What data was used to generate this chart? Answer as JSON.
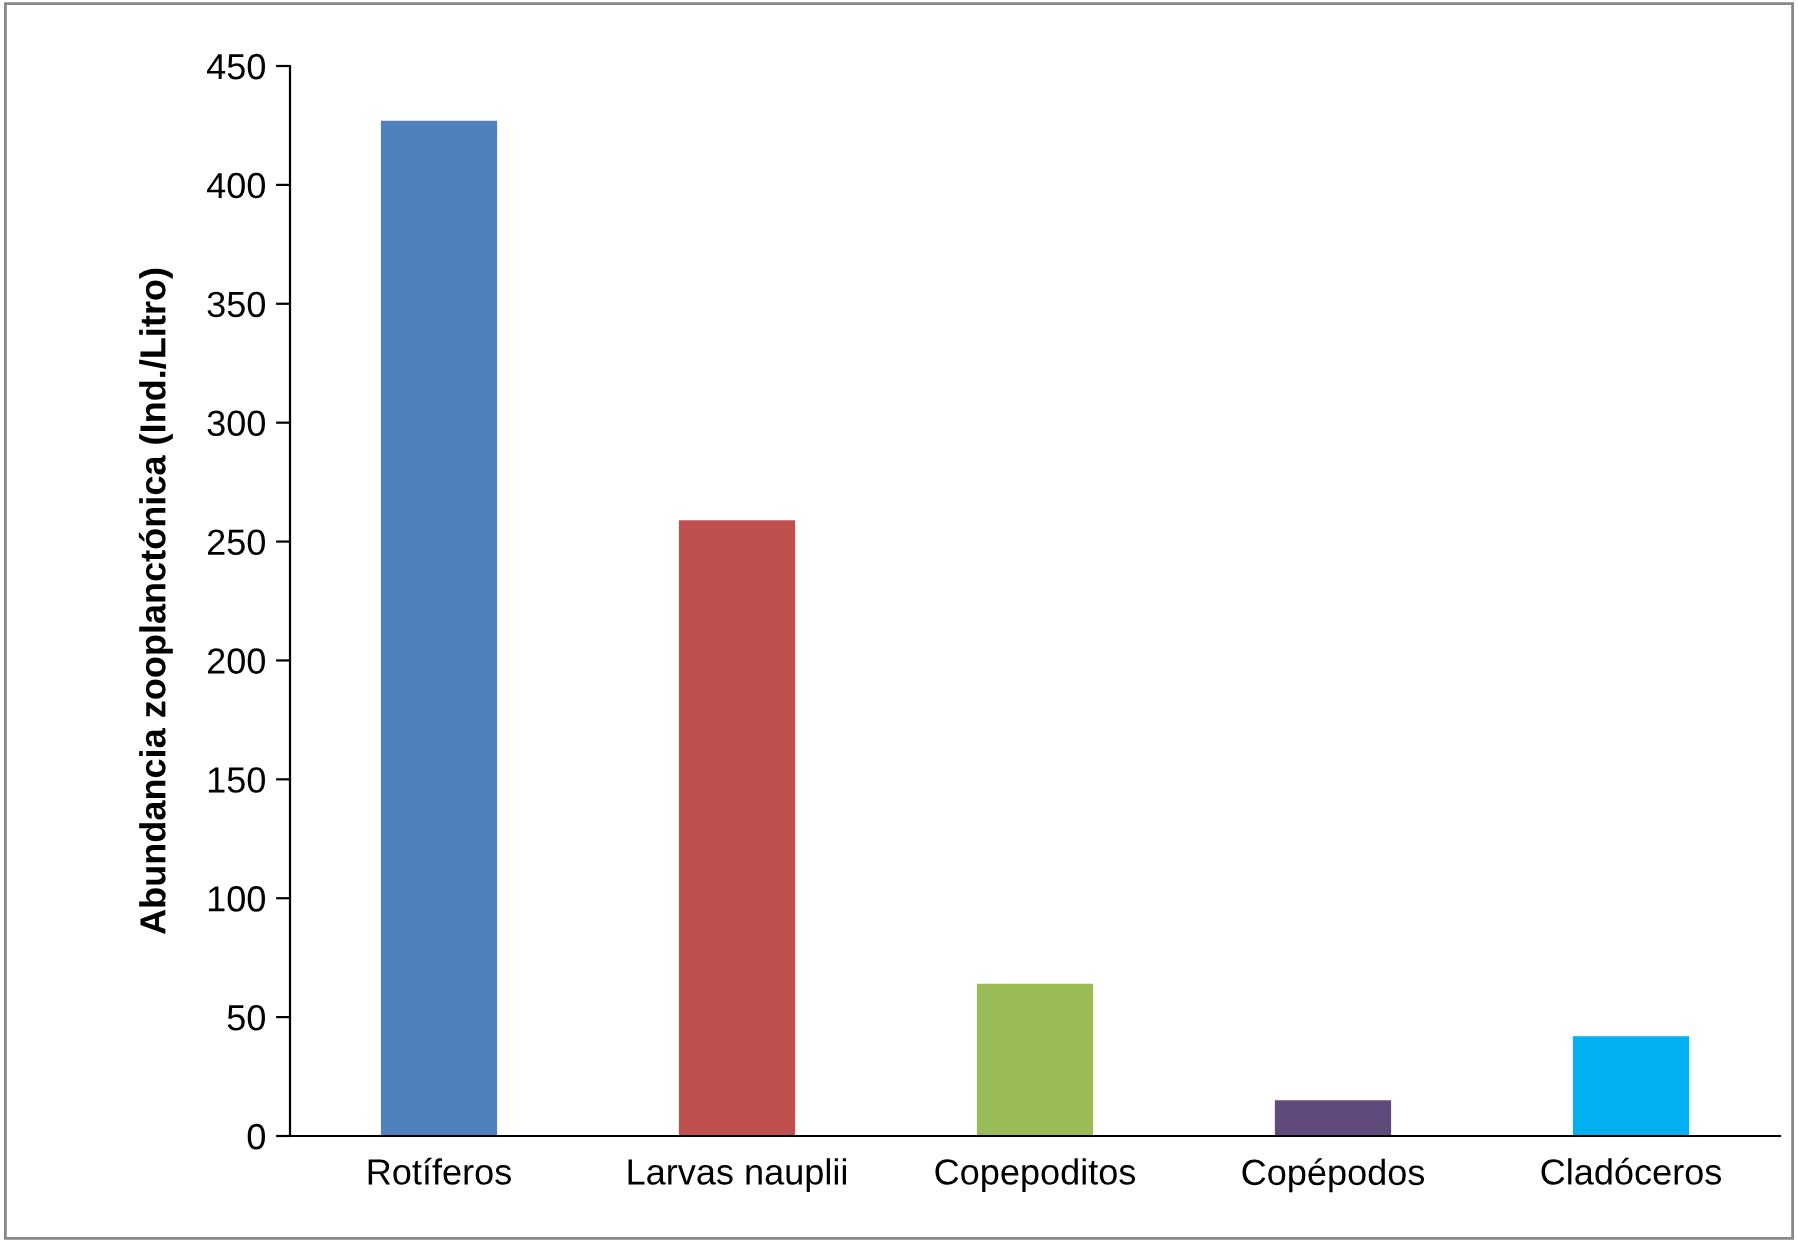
{
  "chart_data": {
    "type": "bar",
    "ylabel": "Abundancia zooplanctónica (Ind./Litro)",
    "categories": [
      "Rotíferos",
      "Larvas nauplii",
      "Copepoditos",
      "Copépodos",
      "Cladóceros"
    ],
    "values": [
      427,
      259,
      64,
      15,
      42
    ],
    "colors": [
      "#4f81bd",
      "#c0504d",
      "#9bbb59",
      "#604a7b",
      "#00b0f0"
    ],
    "ylim": [
      0,
      450
    ],
    "yticks": [
      0,
      50,
      100,
      150,
      200,
      250,
      300,
      350,
      400,
      450
    ],
    "grid": false,
    "legend": false
  }
}
